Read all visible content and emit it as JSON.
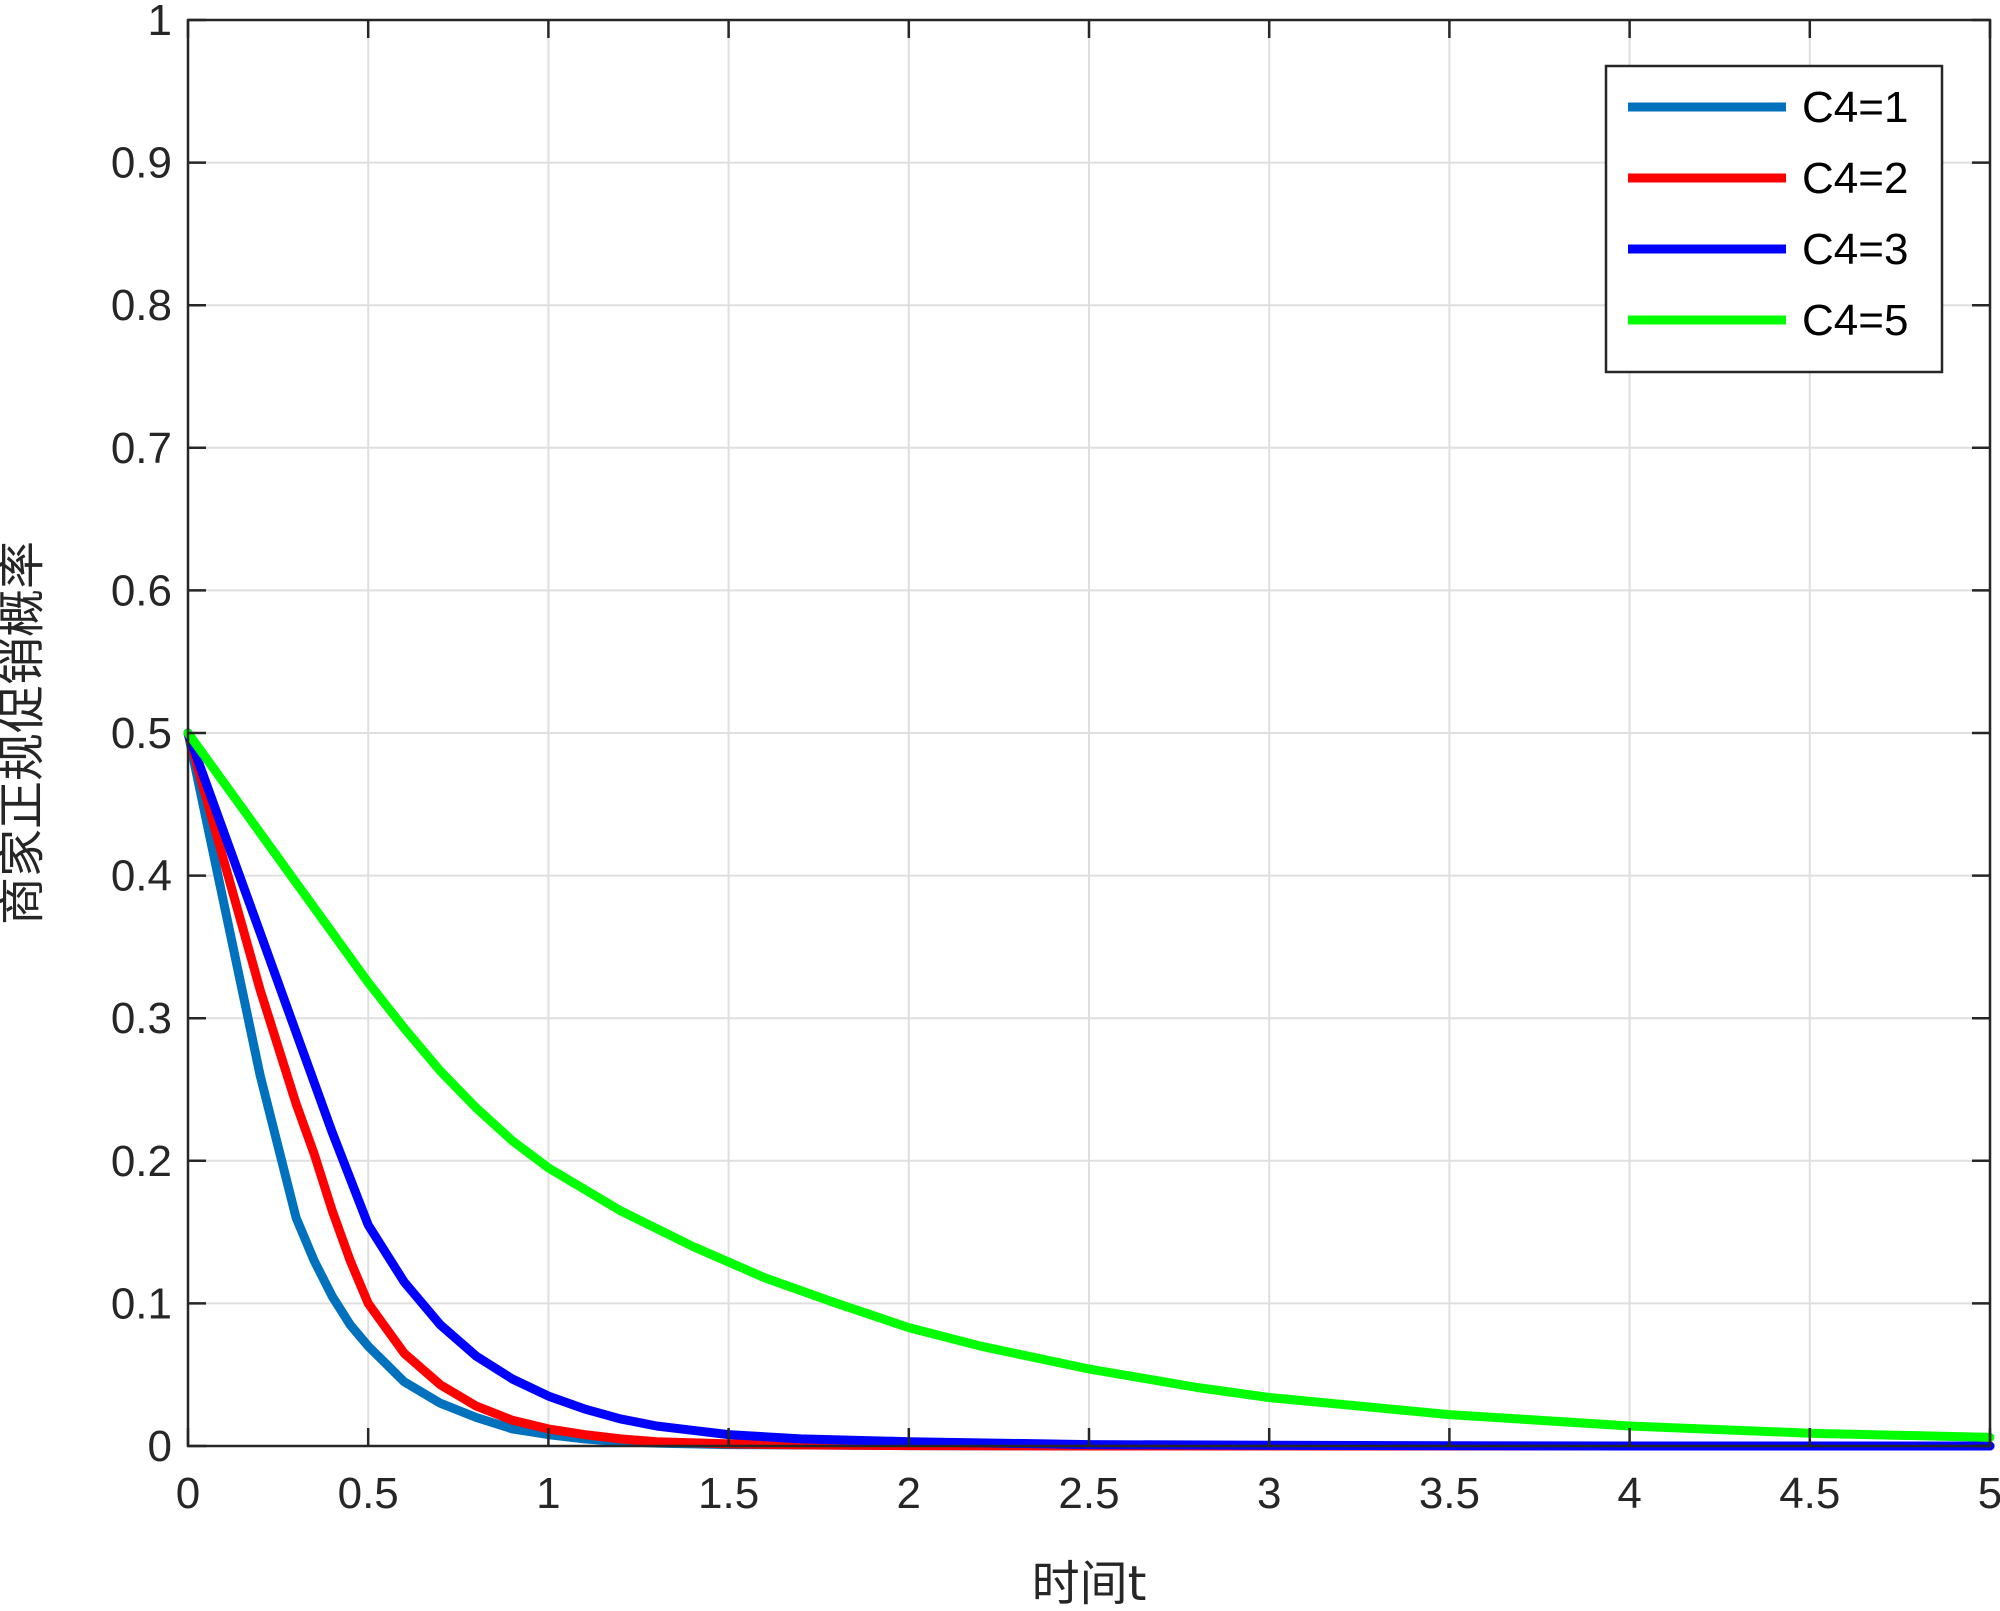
{
  "chart_data": {
    "type": "line",
    "title": "",
    "xlabel": "时间t",
    "ylabel": "商家正规促销概率",
    "xlim": [
      0,
      5
    ],
    "ylim": [
      0,
      1
    ],
    "xticks": [
      0,
      0.5,
      1,
      1.5,
      2,
      2.5,
      3,
      3.5,
      4,
      4.5,
      5
    ],
    "xtick_labels": [
      "0",
      "0.5",
      "1",
      "1.5",
      "2",
      "2.5",
      "3",
      "3.5",
      "4",
      "4.5",
      "5"
    ],
    "yticks": [
      0,
      0.1,
      0.2,
      0.3,
      0.4,
      0.5,
      0.6,
      0.7,
      0.8,
      0.9,
      1
    ],
    "ytick_labels": [
      "0",
      "0.1",
      "0.2",
      "0.3",
      "0.4",
      "0.5",
      "0.6",
      "0.7",
      "0.8",
      "0.9",
      "1"
    ],
    "grid": true,
    "legend_position": "top-right",
    "series": [
      {
        "name": "C4=1",
        "color": "#0072BD",
        "x": [
          0,
          0.1,
          0.2,
          0.25,
          0.3,
          0.35,
          0.4,
          0.45,
          0.5,
          0.6,
          0.7,
          0.8,
          0.9,
          1.0,
          1.1,
          1.2,
          1.3,
          1.5,
          2.0,
          2.5,
          3.0,
          3.5,
          4.0,
          4.5,
          5.0
        ],
        "y": [
          0.5,
          0.38,
          0.26,
          0.21,
          0.16,
          0.13,
          0.105,
          0.085,
          0.07,
          0.045,
          0.03,
          0.02,
          0.012,
          0.008,
          0.005,
          0.003,
          0.002,
          0.001,
          0.0003,
          0,
          0,
          0,
          0,
          0,
          0
        ]
      },
      {
        "name": "C4=2",
        "color": "#FF0000",
        "x": [
          0,
          0.1,
          0.2,
          0.3,
          0.35,
          0.4,
          0.45,
          0.5,
          0.6,
          0.7,
          0.8,
          0.9,
          1.0,
          1.1,
          1.2,
          1.3,
          1.5,
          1.7,
          2.0,
          2.5,
          3.0,
          3.5,
          4.0,
          4.5,
          5.0
        ],
        "y": [
          0.5,
          0.41,
          0.32,
          0.24,
          0.205,
          0.165,
          0.13,
          0.1,
          0.065,
          0.043,
          0.028,
          0.018,
          0.012,
          0.008,
          0.005,
          0.003,
          0.0015,
          0.0008,
          0.0003,
          0,
          0,
          0,
          0,
          0,
          0
        ]
      },
      {
        "name": "C4=3",
        "color": "#0000FF",
        "x": [
          0,
          0.1,
          0.2,
          0.3,
          0.4,
          0.5,
          0.6,
          0.7,
          0.8,
          0.9,
          1.0,
          1.1,
          1.2,
          1.3,
          1.4,
          1.5,
          1.7,
          2.0,
          2.5,
          3.0,
          3.5,
          4.0,
          4.5,
          5.0
        ],
        "y": [
          0.5,
          0.43,
          0.36,
          0.29,
          0.22,
          0.155,
          0.115,
          0.085,
          0.063,
          0.047,
          0.035,
          0.026,
          0.019,
          0.014,
          0.011,
          0.008,
          0.005,
          0.003,
          0.001,
          0.0005,
          0.0002,
          0,
          0,
          0
        ]
      },
      {
        "name": "C4=5",
        "color": "#00FF00",
        "x": [
          0,
          0.1,
          0.2,
          0.3,
          0.4,
          0.5,
          0.6,
          0.7,
          0.8,
          0.9,
          1.0,
          1.2,
          1.4,
          1.6,
          1.8,
          2.0,
          2.2,
          2.5,
          2.8,
          3.0,
          3.5,
          4.0,
          4.5,
          5.0
        ],
        "y": [
          0.5,
          0.465,
          0.43,
          0.395,
          0.36,
          0.325,
          0.293,
          0.263,
          0.237,
          0.214,
          0.195,
          0.165,
          0.14,
          0.118,
          0.1,
          0.083,
          0.07,
          0.054,
          0.041,
          0.034,
          0.022,
          0.014,
          0.009,
          0.006
        ]
      }
    ]
  }
}
